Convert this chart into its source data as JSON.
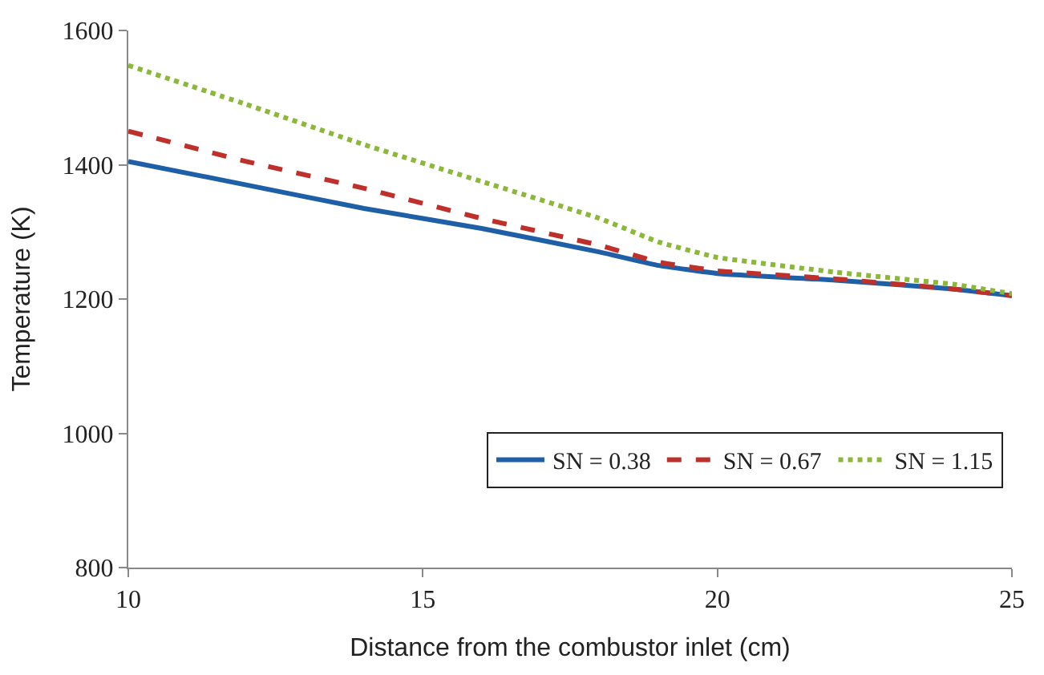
{
  "chart_data": {
    "type": "line",
    "xlabel": "Distance from the combustor inlet (cm)",
    "ylabel": "Temperature (K)",
    "x": [
      10,
      12,
      14,
      16,
      18,
      19,
      20,
      22,
      24,
      25
    ],
    "series": [
      {
        "name": "SN = 0.38",
        "color": "#1f5fa8",
        "line_style": "solid",
        "values": [
          1405,
          1370,
          1335,
          1305,
          1270,
          1250,
          1238,
          1228,
          1215,
          1205
        ]
      },
      {
        "name": "SN = 0.67",
        "color": "#c0302b",
        "line_style": "dashed",
        "values": [
          1450,
          1405,
          1365,
          1320,
          1280,
          1255,
          1242,
          1230,
          1215,
          1205
        ]
      },
      {
        "name": "SN = 1.15",
        "color": "#8cb83a",
        "line_style": "dotted",
        "values": [
          1548,
          1490,
          1430,
          1375,
          1320,
          1285,
          1262,
          1240,
          1222,
          1208
        ]
      }
    ],
    "xlim": [
      10,
      25
    ],
    "xticks": [
      10,
      15,
      20,
      25
    ],
    "ylim": [
      800,
      1600
    ],
    "yticks": [
      800,
      1000,
      1200,
      1400,
      1600
    ],
    "legend": "bottom"
  }
}
